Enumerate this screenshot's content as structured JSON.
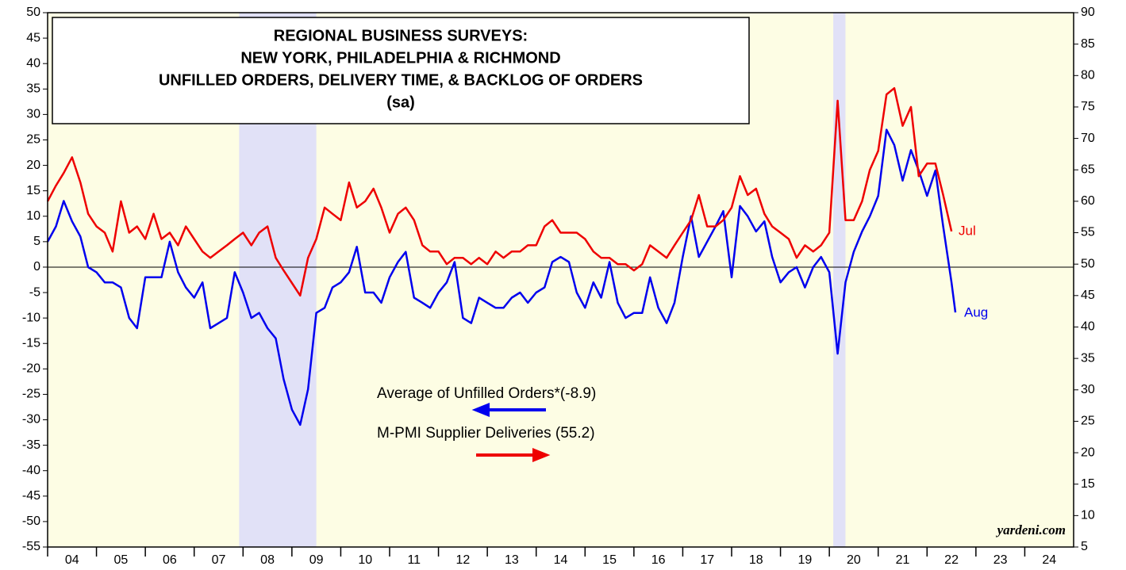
{
  "chart_data": {
    "type": "line",
    "title": [
      "REGIONAL BUSINESS SURVEYS:",
      "NEW YORK, PHILADELPHIA & RICHMOND",
      "UNFILLED ORDERS, DELIVERY TIME, & BACKLOG OF ORDERS",
      "(sa)"
    ],
    "xlim": [
      2004,
      2025
    ],
    "xticks": [
      {
        "value": 2004,
        "label": "04"
      },
      {
        "value": 2005,
        "label": "05"
      },
      {
        "value": 2006,
        "label": "06"
      },
      {
        "value": 2007,
        "label": "07"
      },
      {
        "value": 2008,
        "label": "08"
      },
      {
        "value": 2009,
        "label": "09"
      },
      {
        "value": 2010,
        "label": "10"
      },
      {
        "value": 2011,
        "label": "11"
      },
      {
        "value": 2012,
        "label": "12"
      },
      {
        "value": 2013,
        "label": "13"
      },
      {
        "value": 2014,
        "label": "14"
      },
      {
        "value": 2015,
        "label": "15"
      },
      {
        "value": 2016,
        "label": "16"
      },
      {
        "value": 2017,
        "label": "17"
      },
      {
        "value": 2018,
        "label": "18"
      },
      {
        "value": 2019,
        "label": "19"
      },
      {
        "value": 2020,
        "label": "20"
      },
      {
        "value": 2021,
        "label": "21"
      },
      {
        "value": 2022,
        "label": "22"
      },
      {
        "value": 2023,
        "label": "23"
      },
      {
        "value": 2024,
        "label": "24"
      }
    ],
    "ylim": [
      -55,
      50
    ],
    "yticks": [
      -55,
      -50,
      -45,
      -40,
      -35,
      -30,
      -25,
      -20,
      -15,
      -10,
      -5,
      0,
      5,
      10,
      15,
      20,
      25,
      30,
      35,
      40,
      45,
      50
    ],
    "y2lim": [
      5,
      90
    ],
    "y2ticks": [
      5,
      10,
      15,
      20,
      25,
      30,
      35,
      40,
      45,
      50,
      55,
      60,
      65,
      70,
      75,
      80,
      85,
      90
    ],
    "shading": [
      [
        2007.92,
        2009.5
      ],
      [
        2020.08,
        2020.33
      ]
    ],
    "series": [
      {
        "name": "Average of Unfilled Orders*(-8.9)",
        "color": "#0000ee",
        "axis": "y",
        "x": [
          2004,
          2004.17,
          2004.33,
          2004.5,
          2004.67,
          2004.83,
          2005,
          2005.17,
          2005.33,
          2005.5,
          2005.67,
          2005.83,
          2006,
          2006.17,
          2006.33,
          2006.5,
          2006.67,
          2006.83,
          2007,
          2007.17,
          2007.33,
          2007.5,
          2007.67,
          2007.83,
          2008,
          2008.17,
          2008.33,
          2008.5,
          2008.67,
          2008.83,
          2009,
          2009.17,
          2009.33,
          2009.5,
          2009.67,
          2009.83,
          2010,
          2010.17,
          2010.33,
          2010.5,
          2010.67,
          2010.83,
          2011,
          2011.17,
          2011.33,
          2011.5,
          2011.67,
          2011.83,
          2012,
          2012.17,
          2012.33,
          2012.5,
          2012.67,
          2012.83,
          2013,
          2013.17,
          2013.33,
          2013.5,
          2013.67,
          2013.83,
          2014,
          2014.17,
          2014.33,
          2014.5,
          2014.67,
          2014.83,
          2015,
          2015.17,
          2015.33,
          2015.5,
          2015.67,
          2015.83,
          2016,
          2016.17,
          2016.33,
          2016.5,
          2016.67,
          2016.83,
          2017,
          2017.17,
          2017.33,
          2017.5,
          2017.67,
          2017.83,
          2018,
          2018.17,
          2018.33,
          2018.5,
          2018.67,
          2018.83,
          2019,
          2019.17,
          2019.33,
          2019.5,
          2019.67,
          2019.83,
          2020,
          2020.17,
          2020.33,
          2020.5,
          2020.67,
          2020.83,
          2021,
          2021.17,
          2021.33,
          2021.5,
          2021.67,
          2021.83,
          2022,
          2022.17,
          2022.33,
          2022.5,
          2022.58
        ],
        "values": [
          5,
          8,
          13,
          9,
          6,
          0,
          -1,
          -3,
          -3,
          -4,
          -10,
          -12,
          -2,
          -2,
          -2,
          5,
          -1,
          -4,
          -6,
          -3,
          -12,
          -11,
          -10,
          -1,
          -5,
          -10,
          -9,
          -12,
          -14,
          -22,
          -28,
          -31,
          -24,
          -9,
          -8,
          -4,
          -3,
          -1,
          4,
          -5,
          -5,
          -7,
          -2,
          1,
          3,
          -6,
          -7,
          -8,
          -5,
          -3,
          1,
          -10,
          -11,
          -6,
          -7,
          -8,
          -8,
          -6,
          -5,
          -7,
          -5,
          -4,
          1,
          2,
          1,
          -5,
          -8,
          -3,
          -6,
          1,
          -7,
          -10,
          -9,
          -9,
          -2,
          -8,
          -11,
          -7,
          2,
          10,
          2,
          5,
          8,
          11,
          -2,
          12,
          10,
          7,
          9,
          2,
          -3,
          -1,
          0,
          -4,
          0,
          2,
          -1,
          -17,
          -3,
          3,
          7,
          10,
          14,
          27,
          24,
          17,
          23,
          19,
          14,
          19,
          8,
          -3,
          -8.9
        ]
      },
      {
        "name": "M-PMI Supplier Deliveries (55.2)",
        "color": "#ee0000",
        "axis": "y2",
        "x": [
          2004,
          2004.17,
          2004.33,
          2004.5,
          2004.67,
          2004.83,
          2005,
          2005.17,
          2005.33,
          2005.5,
          2005.67,
          2005.83,
          2006,
          2006.17,
          2006.33,
          2006.5,
          2006.67,
          2006.83,
          2007,
          2007.17,
          2007.33,
          2007.5,
          2007.67,
          2007.83,
          2008,
          2008.17,
          2008.33,
          2008.5,
          2008.67,
          2008.83,
          2009,
          2009.17,
          2009.33,
          2009.5,
          2009.67,
          2009.83,
          2010,
          2010.17,
          2010.33,
          2010.5,
          2010.67,
          2010.83,
          2011,
          2011.17,
          2011.33,
          2011.5,
          2011.67,
          2011.83,
          2012,
          2012.17,
          2012.33,
          2012.5,
          2012.67,
          2012.83,
          2013,
          2013.17,
          2013.33,
          2013.5,
          2013.67,
          2013.83,
          2014,
          2014.17,
          2014.33,
          2014.5,
          2014.67,
          2014.83,
          2015,
          2015.17,
          2015.33,
          2015.5,
          2015.67,
          2015.83,
          2016,
          2016.17,
          2016.33,
          2016.5,
          2016.67,
          2016.83,
          2017,
          2017.17,
          2017.33,
          2017.5,
          2017.67,
          2017.83,
          2018,
          2018.17,
          2018.33,
          2018.5,
          2018.67,
          2018.83,
          2019,
          2019.17,
          2019.33,
          2019.5,
          2019.67,
          2019.83,
          2020,
          2020.17,
          2020.33,
          2020.5,
          2020.67,
          2020.83,
          2021,
          2021.17,
          2021.33,
          2021.5,
          2021.67,
          2021.83,
          2022,
          2022.17,
          2022.33,
          2022.5
        ],
        "values": [
          60,
          62.5,
          64.5,
          67,
          63,
          58,
          56,
          55,
          52,
          60,
          55,
          56,
          54,
          58,
          54,
          55,
          53,
          56,
          54,
          52,
          51,
          52,
          53,
          54,
          55,
          53,
          55,
          56,
          51,
          49,
          47,
          45,
          51,
          54,
          59,
          58,
          57,
          63,
          59,
          60,
          62,
          59,
          55,
          58,
          59,
          57,
          53,
          52,
          52,
          50,
          51,
          51,
          50,
          51,
          50,
          52,
          51,
          52,
          52,
          53,
          53,
          56,
          57,
          55,
          55,
          55,
          54,
          52,
          51,
          51,
          50,
          50,
          49,
          50,
          53,
          52,
          51,
          53,
          55,
          57,
          61,
          56,
          56,
          57,
          59,
          64,
          61,
          62,
          58,
          56,
          55,
          54,
          51,
          53,
          52,
          53,
          55,
          76,
          57,
          57,
          60,
          65,
          68,
          77,
          78,
          72,
          75,
          64,
          66,
          66,
          61,
          55.2
        ]
      }
    ],
    "annotations": [
      "Jul",
      "Aug",
      "yardeni.com"
    ]
  }
}
